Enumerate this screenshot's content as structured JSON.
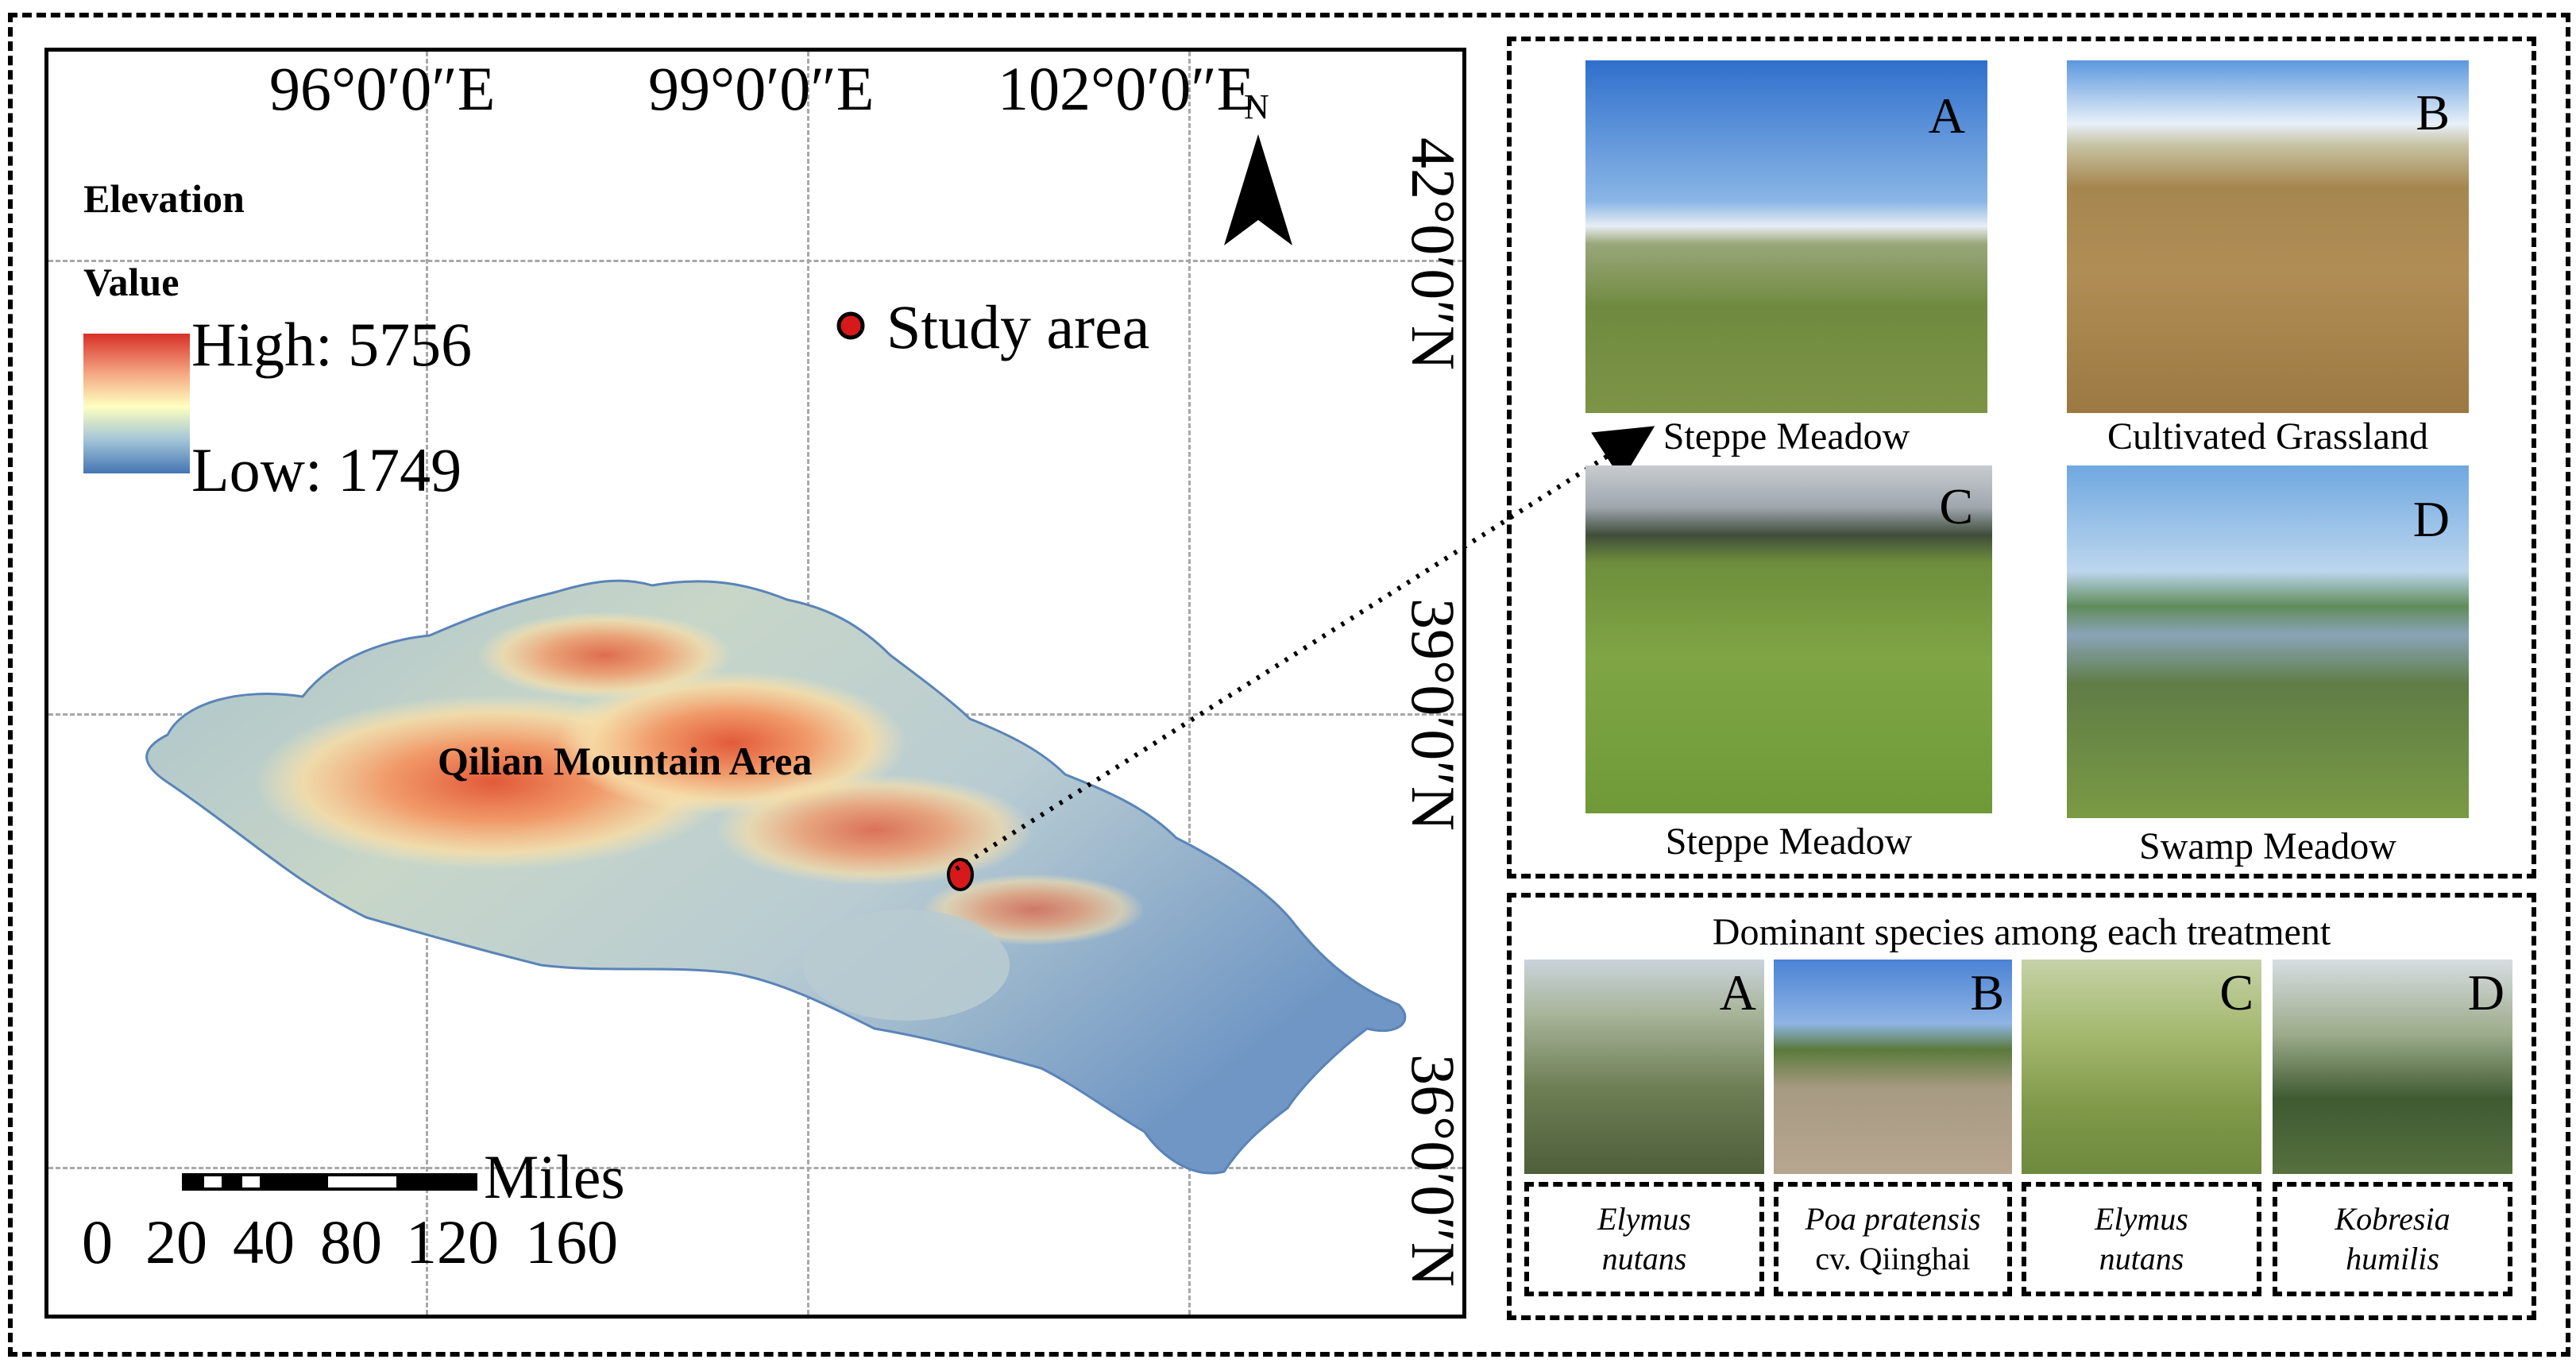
{
  "map": {
    "longitudes": [
      "96°0′0″E",
      "99°0′0″E",
      "102°0′0″E"
    ],
    "latitudes": [
      "42°0′0″N",
      "39°0′0″N",
      "36°0′0″N"
    ],
    "north_arrow": {
      "label": "N",
      "icon": "north-arrow-icon"
    },
    "legend": {
      "title": "Elevation",
      "subtitle": "Value",
      "high": "High: 5756",
      "low": "Low: 1749",
      "colors": [
        "#d73027",
        "#f4a582",
        "#ffffbf",
        "#a6c8d8",
        "#4575b4"
      ]
    },
    "study_area_legend": {
      "label": "Study area",
      "marker_color": "#d7191c"
    },
    "region_label": "Qilian Mountain Area",
    "scale_bar": {
      "unit": "Miles",
      "ticks": [
        "0",
        "20",
        "40",
        "80",
        "120",
        "160"
      ]
    }
  },
  "photos": [
    {
      "letter": "A",
      "caption": "Steppe Meadow"
    },
    {
      "letter": "B",
      "caption": "Cultivated Grassland"
    },
    {
      "letter": "C",
      "caption": "Steppe Meadow"
    },
    {
      "letter": "D",
      "caption": "Swamp Meadow"
    }
  ],
  "species": {
    "title": "Dominant species among each treatment",
    "items": [
      {
        "letter": "A",
        "line1": "Elymus",
        "line2": "nutans"
      },
      {
        "letter": "B",
        "line1": "Poa pratensis",
        "line2": "cv. Qiinghai"
      },
      {
        "letter": "C",
        "line1": "Elymus",
        "line2": "nutans"
      },
      {
        "letter": "D",
        "line1": "Kobresia",
        "line2": "humilis"
      }
    ]
  }
}
